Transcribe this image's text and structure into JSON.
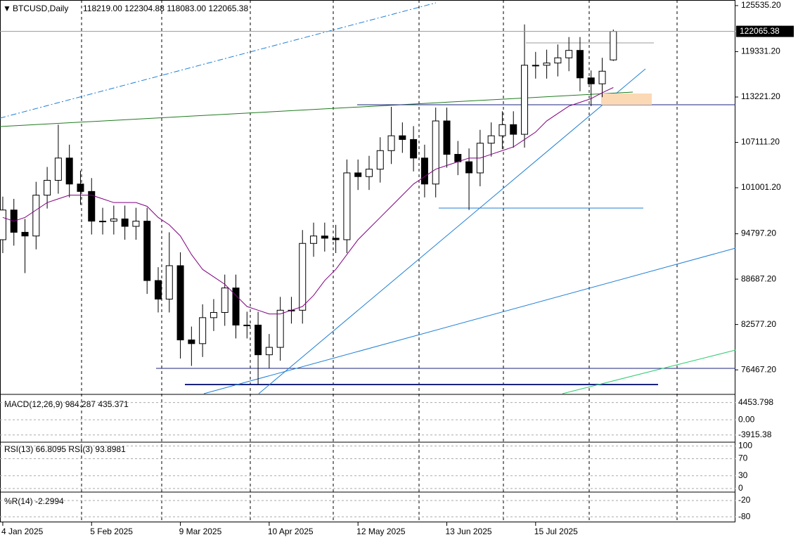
{
  "header": {
    "symbol": "BTCUSD,Daily",
    "ohlc": "118219.00 122304.88 118083.00 122065.38"
  },
  "chart_data": {
    "type": "candlestick",
    "x": [
      "2025-01-04",
      "2025-01-08",
      "2025-01-12",
      "2025-01-16",
      "2025-01-20",
      "2025-01-24",
      "2025-01-28",
      "2025-02-01",
      "2025-02-05",
      "2025-02-09",
      "2025-02-13",
      "2025-02-17",
      "2025-02-21",
      "2025-02-25",
      "2025-03-01",
      "2025-03-05",
      "2025-03-09",
      "2025-03-13",
      "2025-03-17",
      "2025-03-21",
      "2025-03-25",
      "2025-03-29",
      "2025-04-02",
      "2025-04-06",
      "2025-04-10",
      "2025-04-14",
      "2025-04-18",
      "2025-04-22",
      "2025-04-26",
      "2025-04-30",
      "2025-05-04",
      "2025-05-08",
      "2025-05-12",
      "2025-05-16",
      "2025-05-20",
      "2025-05-24",
      "2025-05-28",
      "2025-06-01",
      "2025-06-05",
      "2025-06-09",
      "2025-06-13",
      "2025-06-17",
      "2025-06-21",
      "2025-06-25",
      "2025-06-29",
      "2025-07-03",
      "2025-07-07",
      "2025-07-11",
      "2025-07-15",
      "2025-07-19",
      "2025-07-23",
      "2025-07-27",
      "2025-07-31",
      "2025-08-04",
      "2025-08-08",
      "2025-08-12"
    ],
    "open": [
      94000,
      98000,
      95000,
      94500,
      100000,
      102000,
      105000,
      101500,
      100500,
      96500,
      96500,
      96800,
      95800,
      96500,
      88500,
      86000,
      90500,
      80500,
      80000,
      83500,
      84200,
      87500,
      82500,
      82500,
      78500,
      79500,
      84500,
      84500,
      93500,
      94500,
      94200,
      94000,
      103000,
      102500,
      103500,
      106000,
      108000,
      107500,
      105000,
      101500,
      110000,
      105500,
      104500,
      103000,
      107000,
      108000,
      109500,
      108200,
      117500,
      117500,
      117800,
      118500,
      119500,
      115800,
      115000,
      118219
    ],
    "high": [
      99800,
      99500,
      96800,
      101800,
      103800,
      109500,
      106800,
      103300,
      102300,
      98300,
      98600,
      98600,
      98300,
      98300,
      90300,
      95000,
      92300,
      82300,
      85300,
      86000,
      89300,
      89300,
      84300,
      84300,
      81300,
      86300,
      86300,
      95300,
      96300,
      96300,
      96000,
      104800,
      104800,
      105300,
      107800,
      111900,
      109800,
      109300,
      106800,
      111800,
      111800,
      107300,
      106300,
      108800,
      109800,
      111300,
      111300,
      123000,
      119300,
      119600,
      120300,
      121300,
      121300,
      116800,
      118500,
      122304.88
    ],
    "low": [
      92200,
      93200,
      89500,
      92700,
      98200,
      100200,
      99700,
      98700,
      94700,
      94700,
      94700,
      94000,
      94000,
      86700,
      84200,
      84200,
      78000,
      77000,
      78200,
      81700,
      82400,
      80700,
      80700,
      74500,
      76700,
      77700,
      82700,
      82700,
      91700,
      92400,
      92200,
      92200,
      100700,
      100700,
      101700,
      104200,
      105700,
      103200,
      99700,
      99700,
      103700,
      102700,
      98000,
      101200,
      105200,
      106200,
      106400,
      106400,
      115700,
      115700,
      116000,
      116700,
      114000,
      112000,
      113200,
      118083
    ],
    "close": [
      98000,
      95000,
      94500,
      100000,
      102000,
      105000,
      101500,
      100500,
      96500,
      96500,
      96800,
      95800,
      96500,
      88500,
      86000,
      90500,
      80500,
      80000,
      83500,
      84200,
      87500,
      82500,
      82500,
      78500,
      79500,
      84500,
      84500,
      93500,
      94500,
      94200,
      94000,
      103000,
      102500,
      103500,
      106000,
      108000,
      107500,
      105000,
      101500,
      110000,
      105500,
      104500,
      103000,
      107000,
      108000,
      109500,
      108200,
      117500,
      117500,
      117800,
      118500,
      119500,
      115800,
      115000,
      116700,
      122065.38
    ],
    "ma": {
      "color": "#800080",
      "values": [
        97000,
        96500,
        97000,
        98000,
        99000,
        99500,
        100000,
        100000,
        100000,
        99500,
        99000,
        99000,
        99000,
        98500,
        97000,
        96000,
        94500,
        92000,
        90000,
        89000,
        88000,
        86500,
        85000,
        84500,
        84000,
        84000,
        84500,
        85000,
        86500,
        88500,
        90000,
        92000,
        94000,
        95500,
        97000,
        98500,
        100000,
        101500,
        102500,
        103500,
        104000,
        104500,
        105000,
        105000,
        105500,
        106000,
        106500,
        107500,
        108500,
        110000,
        111000,
        112000,
        112500,
        113000,
        113800,
        114500
      ]
    },
    "xlim": [
      "2025-01-03",
      "2025-09-25"
    ],
    "xticks": [
      {
        "value": "2025-01-04",
        "label": "4 Jan 2025"
      },
      {
        "value": "2025-02-05",
        "label": "5 Feb 2025"
      },
      {
        "value": "2025-03-09",
        "label": "9 Mar 2025"
      },
      {
        "value": "2025-04-10",
        "label": "10 Apr 2025"
      },
      {
        "value": "2025-05-12",
        "label": "12 May 2025"
      },
      {
        "value": "2025-06-13",
        "label": "13 Jun 2025"
      },
      {
        "value": "2025-07-15",
        "label": "15 Jul 2025"
      }
    ],
    "ylim": [
      73260,
      126290
    ],
    "yticks": [
      {
        "value": 125535.2,
        "label": "125535.20"
      },
      {
        "value": 119331.2,
        "label": "119331.20"
      },
      {
        "value": 113221.2,
        "label": "113221.20"
      },
      {
        "value": 107111.2,
        "label": "107111.20"
      },
      {
        "value": 101001.2,
        "label": "101001.20"
      },
      {
        "value": 94797.2,
        "label": "94797.20"
      },
      {
        "value": 88687.2,
        "label": "88687.20"
      },
      {
        "value": 82577.2,
        "label": "82577.20"
      },
      {
        "value": 76467.2,
        "label": "76467.20"
      }
    ],
    "indicators": [
      {
        "label": "MACD(12,26,9) 984.287 435.371",
        "ylim": [
          -5400,
          6190
        ],
        "yticks": [
          4453.798,
          {
            "value": 0,
            "label": "0.00"
          },
          -3915.38
        ]
      },
      {
        "label": "RSI(13) 66.8095  RSI(3) 93.8981",
        "ylim": [
          -3.5,
          104
        ],
        "yticks": [
          100,
          70,
          30,
          0
        ]
      },
      {
        "label": "%R(14) -2.2994",
        "ylim": [
          -98,
          3.5
        ],
        "yticks": [
          -20,
          -80
        ]
      }
    ]
  }
}
